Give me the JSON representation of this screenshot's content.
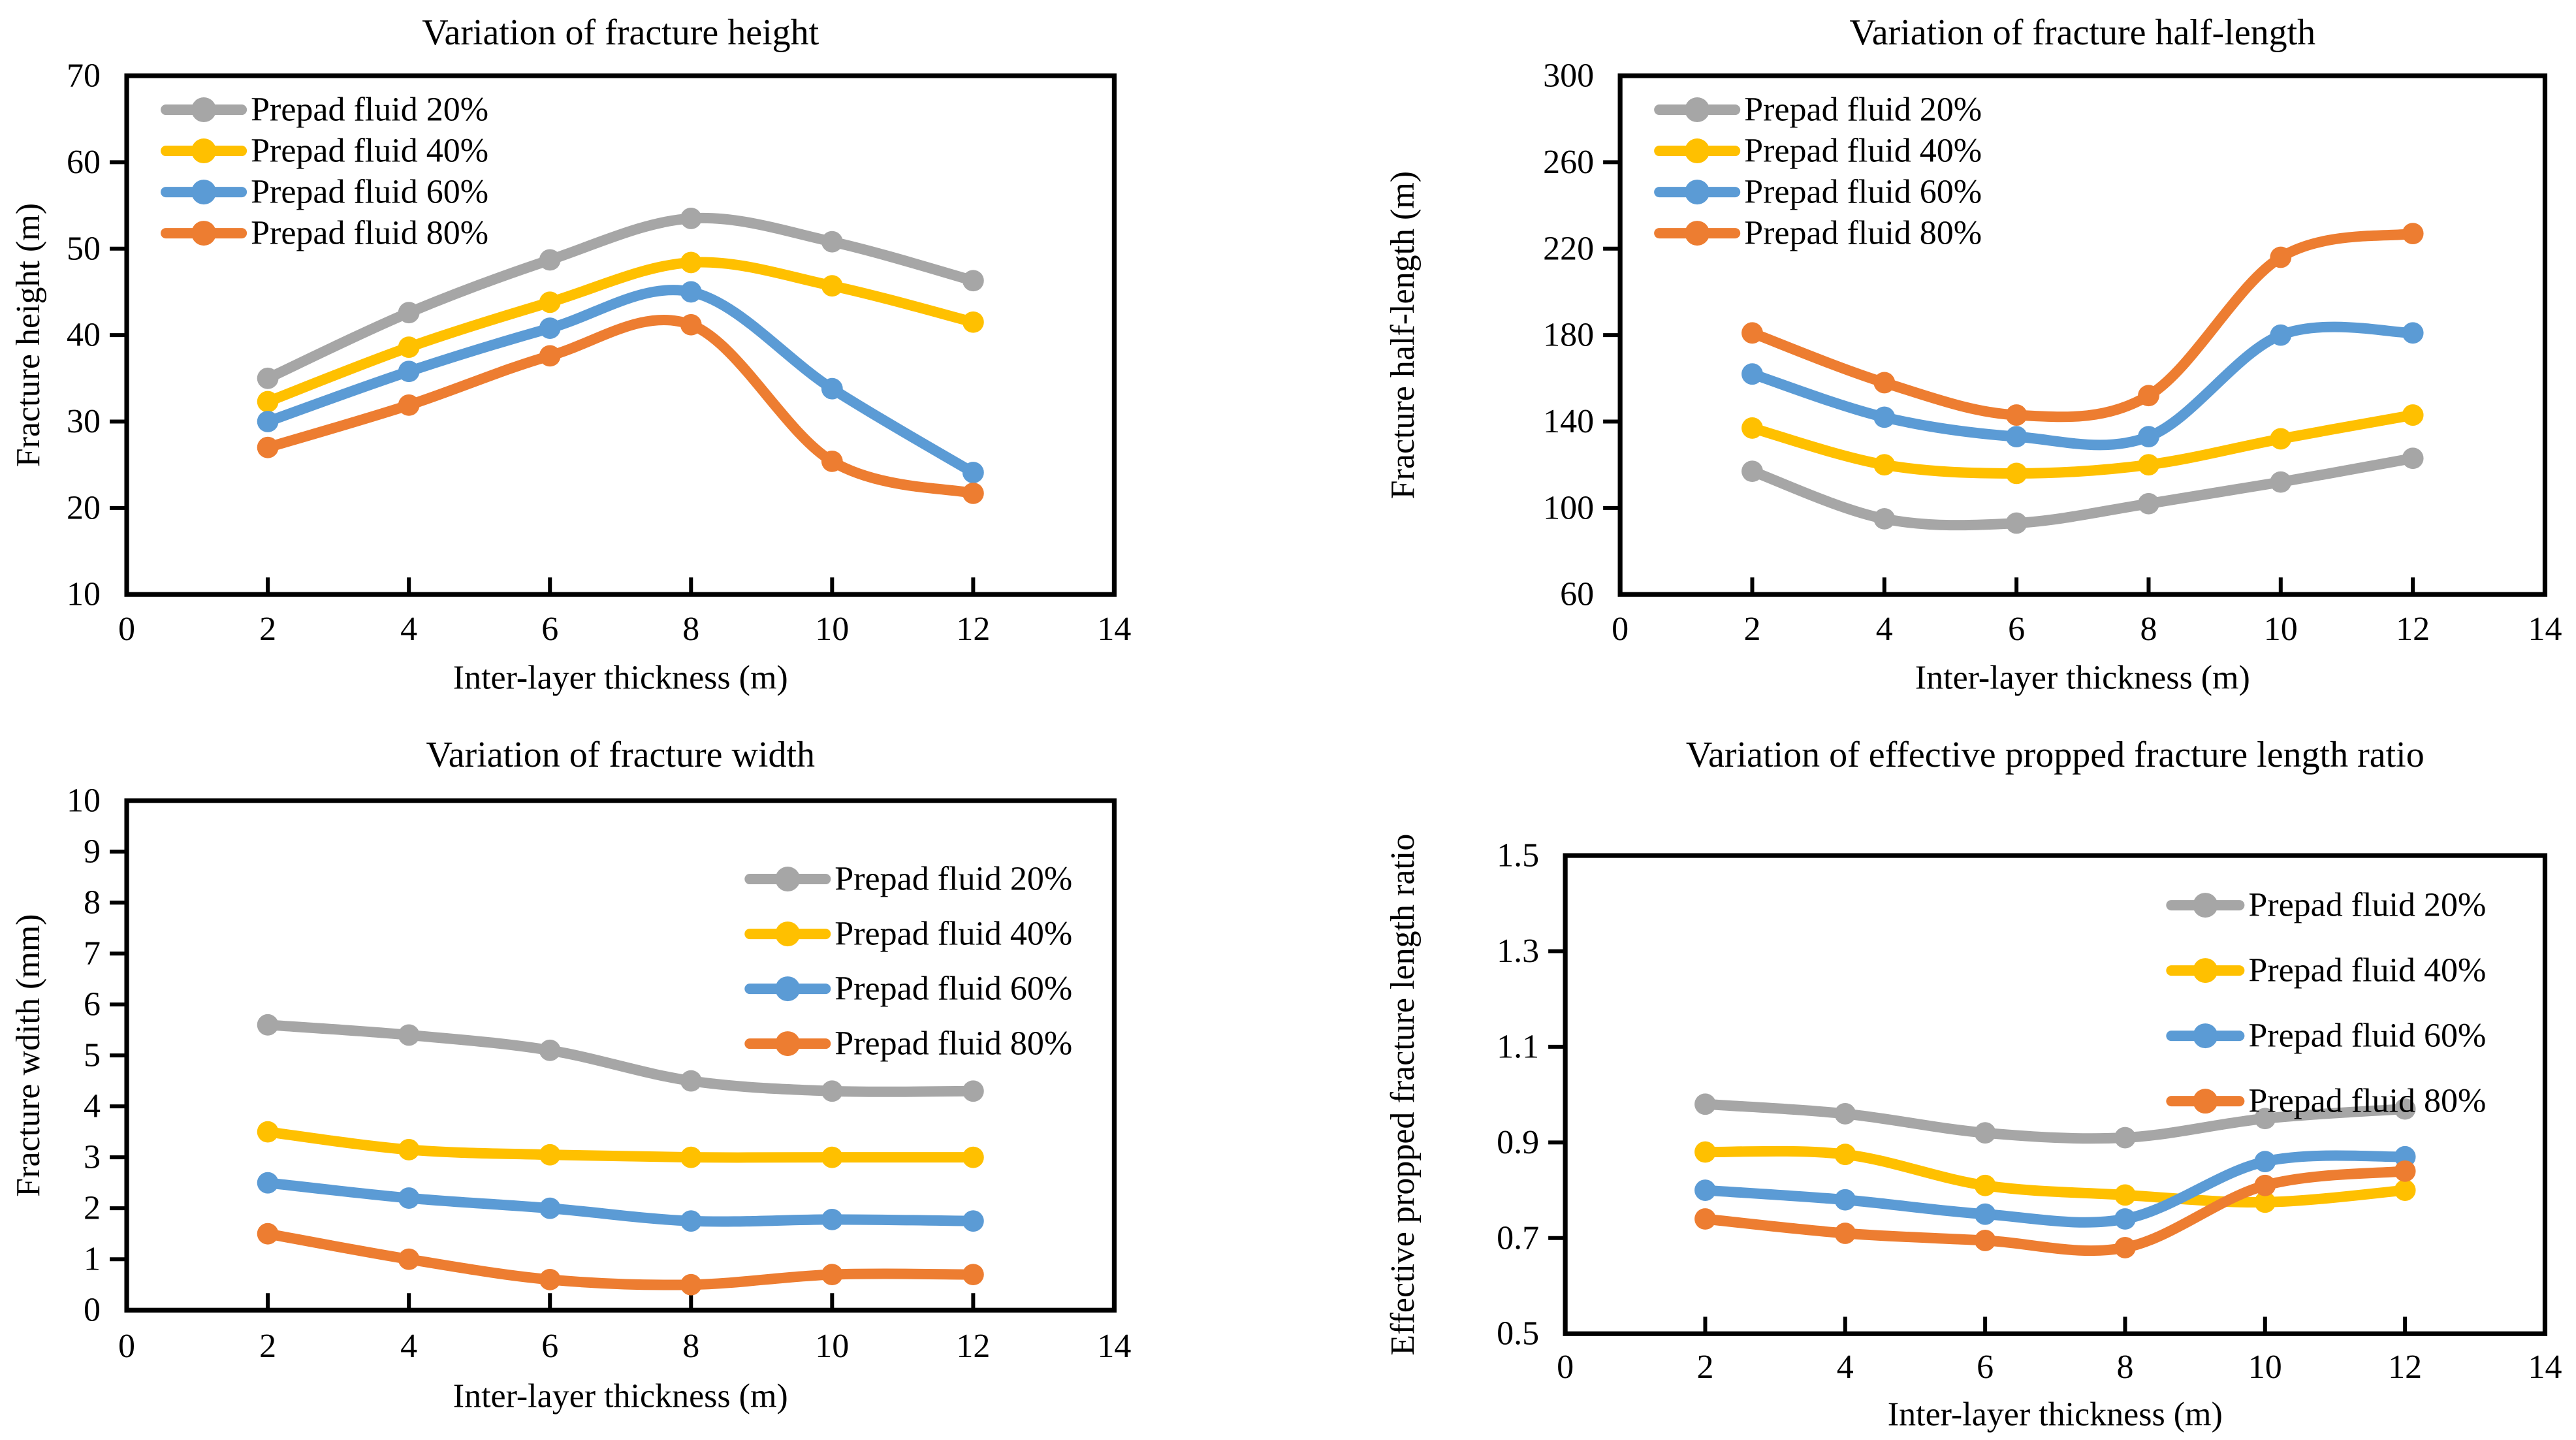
{
  "page": {
    "background": "#ffffff",
    "text_color": "#000000"
  },
  "series_colors": {
    "prepad_20": "#A6A6A6",
    "prepad_40": "#FFC000",
    "prepad_60": "#5B9BD5",
    "prepad_80": "#ED7D31"
  },
  "chart_data": [
    {
      "id": "fracture-height",
      "type": "line",
      "title": "Variation of fracture height",
      "xlabel": "Inter-layer thickness  (m)",
      "ylabel": "Fracture height  (m)",
      "x": [
        2,
        4,
        6,
        8,
        10,
        12
      ],
      "x_range": [
        0,
        14
      ],
      "x_ticks": [
        0,
        2,
        4,
        6,
        8,
        10,
        12,
        14
      ],
      "x_tick_labels": [
        "0",
        "2",
        "4",
        "6",
        "8",
        "10",
        "12",
        "14"
      ],
      "y_range": [
        10,
        70
      ],
      "y_ticks": [
        10,
        20,
        30,
        40,
        50,
        60,
        70
      ],
      "y_tick_labels": [
        "10",
        "20",
        "30",
        "40",
        "50",
        "60",
        "70"
      ],
      "grid": false,
      "legend_position": "top-left",
      "series": [
        {
          "name": "Prepad fluid 20%",
          "color": "#A6A6A6",
          "values": [
            35.0,
            42.6,
            48.7,
            53.5,
            50.8,
            46.3
          ]
        },
        {
          "name": "Prepad fluid 40%",
          "color": "#FFC000",
          "values": [
            32.3,
            38.6,
            43.8,
            48.4,
            45.7,
            41.5
          ]
        },
        {
          "name": "Prepad fluid 60%",
          "color": "#5B9BD5",
          "values": [
            30.0,
            35.8,
            40.8,
            45.0,
            33.8,
            24.1
          ]
        },
        {
          "name": "Prepad fluid 80%",
          "color": "#ED7D31",
          "values": [
            27.0,
            31.9,
            37.6,
            41.2,
            25.4,
            21.7
          ]
        }
      ]
    },
    {
      "id": "fracture-half-length",
      "type": "line",
      "title": "Variation of fracture half-length",
      "xlabel": "Inter-layer thickness  (m)",
      "ylabel": "Fracture half-length (m)",
      "x": [
        2,
        4,
        6,
        8,
        10,
        12
      ],
      "x_range": [
        0,
        14
      ],
      "x_ticks": [
        0,
        2,
        4,
        6,
        8,
        10,
        12,
        14
      ],
      "x_tick_labels": [
        "0",
        "2",
        "4",
        "6",
        "8",
        "10",
        "12",
        "14"
      ],
      "y_range": [
        60,
        300
      ],
      "y_ticks": [
        60,
        100,
        140,
        180,
        220,
        260,
        300
      ],
      "y_tick_labels": [
        "60",
        "100",
        "140",
        "180",
        "220",
        "260",
        "300"
      ],
      "grid": false,
      "legend_position": "top-left",
      "series": [
        {
          "name": "Prepad fluid 20%",
          "color": "#A6A6A6",
          "values": [
            117,
            95,
            93,
            102,
            112,
            123
          ]
        },
        {
          "name": "Prepad fluid 40%",
          "color": "#FFC000",
          "values": [
            137,
            120,
            116,
            120,
            132,
            143
          ]
        },
        {
          "name": "Prepad fluid 60%",
          "color": "#5B9BD5",
          "values": [
            162,
            142,
            133,
            133,
            180,
            181
          ]
        },
        {
          "name": "Prepad fluid 80%",
          "color": "#ED7D31",
          "values": [
            181,
            158,
            143,
            152,
            216,
            227
          ]
        }
      ]
    },
    {
      "id": "fracture-width",
      "type": "line",
      "title": "Variation of fracture width",
      "xlabel": "Inter-layer thickness  (m)",
      "ylabel": "Fracture wdith  (mm)",
      "x": [
        2,
        4,
        6,
        8,
        10,
        12
      ],
      "x_range": [
        0,
        14
      ],
      "x_ticks": [
        0,
        2,
        4,
        6,
        8,
        10,
        12,
        14
      ],
      "x_tick_labels": [
        "0",
        "2",
        "4",
        "6",
        "8",
        "10",
        "12",
        "14"
      ],
      "y_range": [
        0,
        10
      ],
      "y_ticks": [
        0,
        1,
        2,
        3,
        4,
        5,
        6,
        7,
        8,
        9,
        10
      ],
      "y_tick_labels": [
        "0",
        "1",
        "2",
        "3",
        "4",
        "5",
        "6",
        "7",
        "8",
        "9",
        "10"
      ],
      "grid": false,
      "legend_position": "top-right",
      "series": [
        {
          "name": "Prepad fluid 20%",
          "color": "#A6A6A6",
          "values": [
            5.6,
            5.4,
            5.1,
            4.5,
            4.3,
            4.3
          ]
        },
        {
          "name": "Prepad fluid 40%",
          "color": "#FFC000",
          "values": [
            3.5,
            3.15,
            3.05,
            3.0,
            3.0,
            3.0
          ]
        },
        {
          "name": "Prepad fluid 60%",
          "color": "#5B9BD5",
          "values": [
            2.5,
            2.2,
            2.0,
            1.75,
            1.78,
            1.75
          ]
        },
        {
          "name": "Prepad fluid 80%",
          "color": "#ED7D31",
          "values": [
            1.5,
            1.0,
            0.6,
            0.5,
            0.7,
            0.7
          ]
        }
      ]
    },
    {
      "id": "effective-propped-fracture-length-ratio",
      "type": "line",
      "title": "Variation of effective propped fracture length ratio",
      "xlabel": "Inter-layer thickness  (m)",
      "ylabel": "Effective propped fracture  length ratio",
      "x": [
        2,
        4,
        6,
        8,
        10,
        12
      ],
      "x_range": [
        0,
        14
      ],
      "x_ticks": [
        0,
        2,
        4,
        6,
        8,
        10,
        12,
        14
      ],
      "x_tick_labels": [
        "0",
        "2",
        "4",
        "6",
        "8",
        "10",
        "12",
        "14"
      ],
      "y_range": [
        0.5,
        1.5
      ],
      "y_ticks": [
        0.5,
        0.7,
        0.9,
        1.1,
        1.3,
        1.5
      ],
      "y_tick_labels": [
        "0.5",
        "0.7",
        "0.9",
        "1.1",
        "1.3",
        "1.5"
      ],
      "grid": false,
      "legend_position": "top-right",
      "series": [
        {
          "name": "Prepad fluid 20%",
          "color": "#A6A6A6",
          "values": [
            0.98,
            0.96,
            0.92,
            0.91,
            0.95,
            0.97
          ]
        },
        {
          "name": "Prepad fluid 40%",
          "color": "#FFC000",
          "values": [
            0.88,
            0.875,
            0.81,
            0.79,
            0.775,
            0.8
          ]
        },
        {
          "name": "Prepad fluid 60%",
          "color": "#5B9BD5",
          "values": [
            0.8,
            0.78,
            0.75,
            0.74,
            0.86,
            0.87
          ]
        },
        {
          "name": "Prepad fluid 80%",
          "color": "#ED7D31",
          "values": [
            0.74,
            0.71,
            0.695,
            0.68,
            0.81,
            0.84
          ]
        }
      ]
    }
  ]
}
